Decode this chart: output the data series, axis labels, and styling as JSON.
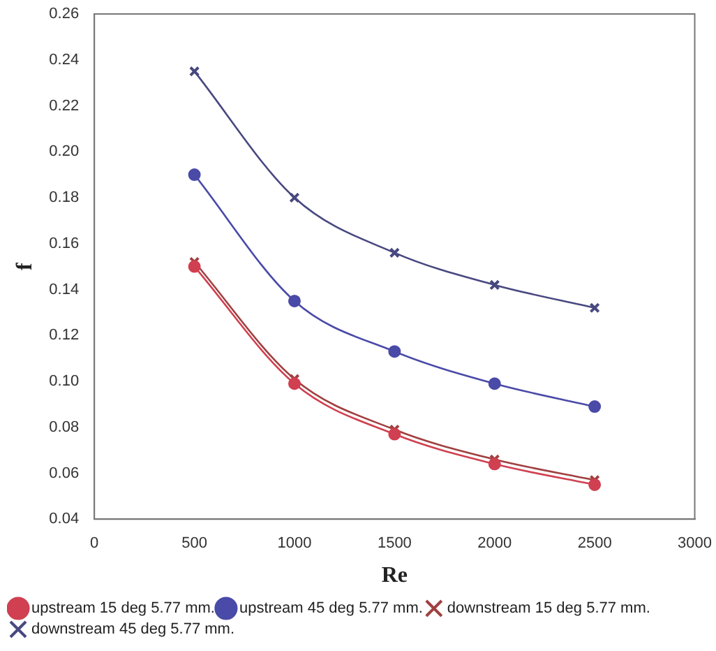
{
  "chart_data": {
    "type": "line",
    "xlabel": "Re",
    "ylabel": "f",
    "x": [
      500,
      1000,
      1500,
      2000,
      2500
    ],
    "series": [
      {
        "name": "upstream 15 deg 5.77 mm.",
        "color": "#d04050",
        "marker": "circle",
        "values": [
          0.15,
          0.099,
          0.077,
          0.064,
          0.055
        ]
      },
      {
        "name": "upstream 45 deg 5.77 mm.",
        "color": "#4a4aa8",
        "marker": "circle",
        "values": [
          0.19,
          0.135,
          0.113,
          0.099,
          0.089
        ]
      },
      {
        "name": "downstream 15 deg 5.77 mm.",
        "color": "#a04040",
        "marker": "cross",
        "values": [
          0.152,
          0.101,
          0.079,
          0.066,
          0.057
        ]
      },
      {
        "name": "downstream 45 deg 5.77 mm.",
        "color": "#484880",
        "marker": "cross",
        "values": [
          0.235,
          0.18,
          0.156,
          0.142,
          0.132
        ]
      }
    ],
    "xlim": [
      0,
      3000
    ],
    "xticks": [
      0,
      500,
      1000,
      1500,
      2000,
      2500,
      3000
    ],
    "ylim": [
      0.04,
      0.26
    ],
    "yticks": [
      {
        "value": 0.04,
        "label": "0.04"
      },
      {
        "value": 0.06,
        "label": "0.06"
      },
      {
        "value": 0.08,
        "label": "0.08"
      },
      {
        "value": 0.1,
        "label": "0.10"
      },
      {
        "value": 0.12,
        "label": "0.12"
      },
      {
        "value": 0.14,
        "label": "0.14"
      },
      {
        "value": 0.16,
        "label": "0.16"
      },
      {
        "value": 0.18,
        "label": "0.18"
      },
      {
        "value": 0.2,
        "label": "0.20"
      },
      {
        "value": 0.22,
        "label": "0.22"
      },
      {
        "value": 0.24,
        "label": "0.24"
      },
      {
        "value": 0.26,
        "label": "0.26"
      }
    ],
    "grid": false,
    "legend": "bottom left"
  }
}
